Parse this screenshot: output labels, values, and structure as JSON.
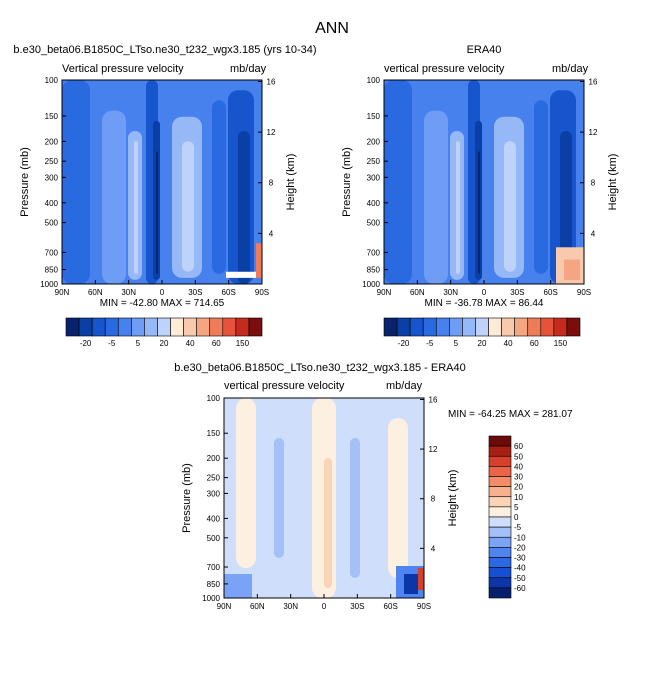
{
  "page": {
    "title": "ANN"
  },
  "colors": {
    "top_scale": [
      "#08236b",
      "#0a3fa6",
      "#1655cc",
      "#2a6ae0",
      "#4781ee",
      "#6f9cf4",
      "#97b8f7",
      "#bfd2fa",
      "#fdebd6",
      "#f9c9ad",
      "#f5a582",
      "#ef7b58",
      "#e6523a",
      "#c42a1e",
      "#7a0d0d"
    ],
    "diff_scale": [
      "#06206e",
      "#0b36a8",
      "#1650d2",
      "#2a68e4",
      "#4d84ef",
      "#7aa3f5",
      "#a4c0f8",
      "#cfdffb",
      "#fdf0e0",
      "#fbd4b8",
      "#f7b18e",
      "#f28d68",
      "#ea6547",
      "#d4402b",
      "#a81f14",
      "#6b0a0a"
    ]
  },
  "chart_data": [
    {
      "type": "heatmap",
      "title": "b.e30_beta06.B1850C_LTso.ne30_t232_wgx3.185 (yrs 10-34)",
      "left_label": "Vertical pressure velocity",
      "unit_label": "mb/day",
      "xlabel": "",
      "ylabel": "Pressure (mb)",
      "y2label": "Height (km)",
      "x_ticks": [
        "90N",
        "60N",
        "30N",
        "0",
        "30S",
        "60S",
        "90S"
      ],
      "y_ticks": [
        "100",
        "150",
        "200",
        "250",
        "300",
        "400",
        "500",
        "700",
        "850",
        "1000"
      ],
      "y2_ticks": [
        "16",
        "12",
        "8",
        "4"
      ],
      "stats": "MIN = -42.80  MAX = 714.65",
      "grid": false
    },
    {
      "type": "heatmap",
      "title": "ERA40",
      "left_label": "vertical pressure velocity",
      "unit_label": "mb/day",
      "xlabel": "",
      "ylabel": "Pressure (mb)",
      "y2label": "Height (km)",
      "x_ticks": [
        "90N",
        "60N",
        "30N",
        "0",
        "30S",
        "60S",
        "90S"
      ],
      "y_ticks": [
        "100",
        "150",
        "200",
        "250",
        "300",
        "400",
        "500",
        "700",
        "850",
        "1000"
      ],
      "y2_ticks": [
        "16",
        "12",
        "8",
        "4"
      ],
      "stats": "MIN = -36.78  MAX =  86.44",
      "grid": false
    },
    {
      "type": "heatmap",
      "title": "b.e30_beta06.B1850C_LTso.ne30_t232_wgx3.185 - ERA40",
      "left_label": "vertical pressure velocity",
      "unit_label": "mb/day",
      "xlabel": "",
      "ylabel": "Pressure (mb)",
      "y2label": "Height (km)",
      "x_ticks": [
        "90N",
        "60N",
        "30N",
        "0",
        "30S",
        "60S",
        "90S"
      ],
      "y_ticks": [
        "100",
        "150",
        "200",
        "250",
        "300",
        "400",
        "500",
        "700",
        "850",
        "1000"
      ],
      "y2_ticks": [
        "16",
        "12",
        "8",
        "4"
      ],
      "stats": "MIN = -64.25  MAX = 281.07",
      "grid": false
    }
  ],
  "colorbars": {
    "top_labels": [
      "-20",
      "-5",
      "5",
      "20",
      "40",
      "60",
      "150"
    ],
    "diff_labels": [
      "60",
      "50",
      "40",
      "30",
      "20",
      "10",
      "5",
      "0",
      "-5",
      "-10",
      "-20",
      "-30",
      "-40",
      "-50",
      "-60"
    ]
  }
}
